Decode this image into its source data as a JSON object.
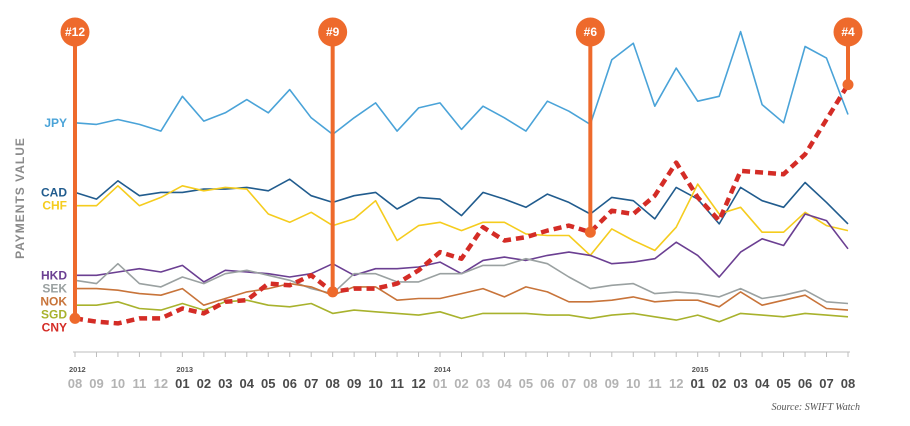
{
  "chart_data": {
    "type": "line",
    "ylabel": "PAYMENTS VALUE",
    "source": "Source: SWIFT Watch",
    "months": [
      "08",
      "09",
      "10",
      "11",
      "12",
      "01",
      "02",
      "03",
      "04",
      "05",
      "06",
      "07",
      "08",
      "09",
      "10",
      "11",
      "12",
      "01",
      "02",
      "03",
      "04",
      "05",
      "06",
      "07",
      "08",
      "09",
      "10",
      "11",
      "12",
      "01",
      "02",
      "03",
      "04",
      "05",
      "06",
      "07",
      "08"
    ],
    "years": [
      {
        "label": "2012",
        "index": 0,
        "color": "#aaaaaa"
      },
      {
        "label": "2013",
        "index": 5,
        "color": "#444444"
      },
      {
        "label": "2014",
        "index": 17,
        "color": "#aaaaaa"
      },
      {
        "label": "2015",
        "index": 29,
        "color": "#444444"
      }
    ],
    "month_colors": {
      "light": "#b3b3b3",
      "dark": "#4a4a4a"
    },
    "month_dark_ranges": [
      [
        5,
        16
      ],
      [
        29,
        36
      ]
    ],
    "ranks": [
      {
        "label": "#12",
        "index": 0
      },
      {
        "label": "#9",
        "index": 12
      },
      {
        "label": "#6",
        "index": 24
      },
      {
        "label": "#4",
        "index": 36
      }
    ],
    "marker_color": "#ee6a2c",
    "series": [
      {
        "name": "JPY",
        "color": "#4aa3d8",
        "dashed": false,
        "values": [
          15.8,
          15.7,
          16.0,
          15.7,
          15.3,
          17.4,
          15.9,
          16.4,
          17.2,
          16.4,
          17.8,
          16.1,
          15.1,
          16.1,
          17.0,
          15.3,
          16.7,
          17.0,
          15.4,
          16.8,
          16.1,
          15.3,
          17.1,
          16.5,
          15.7,
          19.6,
          20.6,
          16.8,
          19.1,
          17.1,
          17.4,
          21.3,
          16.9,
          15.8,
          20.4,
          19.7,
          16.3
        ]
      },
      {
        "name": "CAD",
        "color": "#215c8e",
        "dashed": false,
        "values": [
          11.6,
          11.2,
          12.3,
          11.4,
          11.6,
          11.6,
          11.8,
          11.8,
          11.9,
          11.7,
          12.4,
          11.4,
          11.0,
          11.4,
          11.6,
          10.6,
          11.3,
          11.2,
          10.2,
          11.6,
          11.2,
          10.7,
          11.5,
          11.0,
          10.3,
          11.3,
          11.1,
          10.0,
          11.9,
          11.2,
          9.7,
          11.9,
          11.1,
          10.7,
          12.2,
          11.0,
          9.7
        ]
      },
      {
        "name": "CHF",
        "color": "#f5cc1e",
        "dashed": false,
        "values": [
          10.8,
          10.8,
          12.0,
          10.8,
          11.3,
          12.0,
          11.7,
          11.9,
          11.8,
          10.3,
          9.8,
          10.4,
          9.6,
          10.0,
          11.1,
          8.7,
          9.6,
          9.8,
          9.3,
          9.8,
          9.8,
          9.1,
          9.0,
          9.0,
          7.8,
          9.4,
          8.7,
          8.1,
          9.5,
          12.1,
          10.3,
          10.7,
          9.2,
          9.2,
          10.4,
          9.6,
          9.3
        ]
      },
      {
        "name": "HKD",
        "color": "#6b3f92",
        "dashed": false,
        "values": [
          6.6,
          6.6,
          6.8,
          7.0,
          6.8,
          7.2,
          6.2,
          6.9,
          6.8,
          6.7,
          6.5,
          6.7,
          7.3,
          6.6,
          7.0,
          7.0,
          7.1,
          7.4,
          6.7,
          7.5,
          7.7,
          7.5,
          7.8,
          8.0,
          7.8,
          7.3,
          7.4,
          7.6,
          8.6,
          7.8,
          6.5,
          8.0,
          8.8,
          8.4,
          10.3,
          9.9,
          8.2
        ]
      },
      {
        "name": "SEK",
        "color": "#9aa1a1",
        "dashed": false,
        "values": [
          6.3,
          6.1,
          7.3,
          6.1,
          5.9,
          6.5,
          6.1,
          6.7,
          6.9,
          6.6,
          6.3,
          5.8,
          5.5,
          6.7,
          6.7,
          6.2,
          6.2,
          6.7,
          6.7,
          7.2,
          7.2,
          7.6,
          7.3,
          6.5,
          5.8,
          6.0,
          6.1,
          5.5,
          5.6,
          5.5,
          5.3,
          5.8,
          5.2,
          5.4,
          5.7,
          5.0,
          4.9
        ]
      },
      {
        "name": "NOK",
        "color": "#c8743a",
        "dashed": false,
        "values": [
          5.8,
          5.8,
          5.7,
          5.5,
          5.4,
          5.8,
          4.8,
          5.2,
          5.6,
          5.8,
          6.1,
          5.9,
          5.4,
          5.9,
          5.9,
          5.1,
          5.2,
          5.2,
          5.5,
          5.8,
          5.3,
          5.9,
          5.6,
          5.0,
          5.0,
          5.1,
          5.3,
          5.0,
          5.1,
          5.1,
          4.7,
          5.6,
          4.8,
          5.1,
          5.4,
          4.6,
          4.5
        ]
      },
      {
        "name": "SGD",
        "color": "#a8b22d",
        "dashed": false,
        "values": [
          4.8,
          4.8,
          5.0,
          4.6,
          4.5,
          4.9,
          4.5,
          5.0,
          5.1,
          4.8,
          4.7,
          4.9,
          4.3,
          4.5,
          4.4,
          4.3,
          4.2,
          4.4,
          4.0,
          4.3,
          4.3,
          4.3,
          4.2,
          4.2,
          4.0,
          4.2,
          4.3,
          4.1,
          3.9,
          4.2,
          3.8,
          4.3,
          4.2,
          4.1,
          4.3,
          4.2,
          4.1
        ]
      },
      {
        "name": "CNY",
        "color": "#d42c26",
        "dashed": true,
        "values": [
          4.0,
          3.8,
          3.7,
          4.0,
          4.0,
          4.6,
          4.3,
          5.0,
          5.1,
          6.1,
          6.0,
          6.6,
          5.6,
          5.8,
          5.8,
          6.1,
          6.9,
          8.0,
          7.6,
          9.5,
          8.7,
          8.9,
          9.3,
          9.6,
          9.2,
          10.5,
          10.3,
          11.4,
          13.4,
          11.3,
          9.9,
          12.9,
          12.8,
          12.7,
          13.9,
          16.0,
          18.1
        ]
      }
    ]
  }
}
